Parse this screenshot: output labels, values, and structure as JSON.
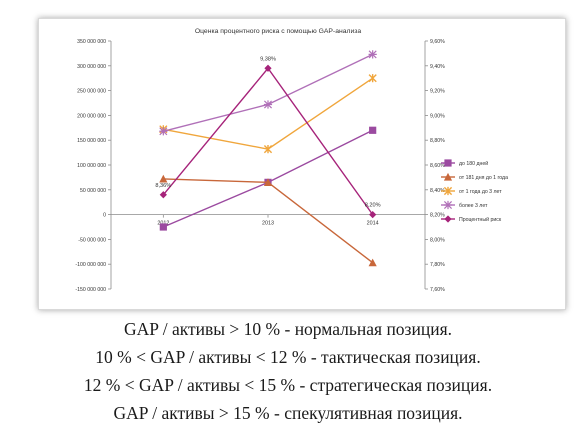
{
  "chart_data": {
    "type": "line",
    "title": "Оценка процентного риска с помощью GAP-анализа",
    "categories": [
      "2012",
      "2013",
      "2014"
    ],
    "ylim": [
      -150000000,
      350000000
    ],
    "yticks": [
      "350 000 000",
      "300 000 000",
      "250 000 000",
      "200 000 000",
      "150 000 000",
      "100 000 000",
      "50 000 000",
      "0",
      "-50 000 000",
      "-100 000 000",
      "-150 000 000"
    ],
    "y2lim": [
      7.6,
      9.6
    ],
    "y2ticks": [
      "9,60%",
      "9,40%",
      "9,20%",
      "9,00%",
      "8,80%",
      "8,60%",
      "8,40%",
      "8,20%",
      "8,00%",
      "7,80%",
      "7,60%"
    ],
    "grid": false,
    "legend": "right",
    "series": [
      {
        "name": "до 180 дней",
        "axis": "left",
        "marker": "square",
        "color": "#9b4aa0",
        "values": [
          -25000000,
          65000000,
          170000000
        ]
      },
      {
        "name": "от 181 дня до 1 года",
        "axis": "left",
        "marker": "triangle",
        "color": "#c8673a",
        "values": [
          72000000,
          65000000,
          -97000000
        ]
      },
      {
        "name": "от 1 года до 3 лет",
        "axis": "left",
        "marker": "star",
        "color": "#f0a63c",
        "values": [
          172000000,
          132000000,
          275000000
        ]
      },
      {
        "name": "более 3 лет",
        "axis": "left",
        "marker": "asterisk",
        "color": "#b070b8",
        "values": [
          168000000,
          222000000,
          323000000
        ]
      },
      {
        "name": "Процентный риск",
        "axis": "right",
        "marker": "diamond",
        "color": "#a6237a",
        "values": [
          8.36,
          9.38,
          8.2
        ]
      }
    ],
    "data_labels": [
      "8,36%",
      "9,38%",
      "8,20%"
    ]
  },
  "caption": {
    "lines": [
      "GAP / активы > 10 % - нормальная позиция.",
      "10 % < GAP / активы < 12 % - тактическая позиция.",
      "12 % < GAP / активы < 15 % - стратегическая позиция.",
      "GAP / активы > 15 % - спекулятивная позиция."
    ]
  }
}
